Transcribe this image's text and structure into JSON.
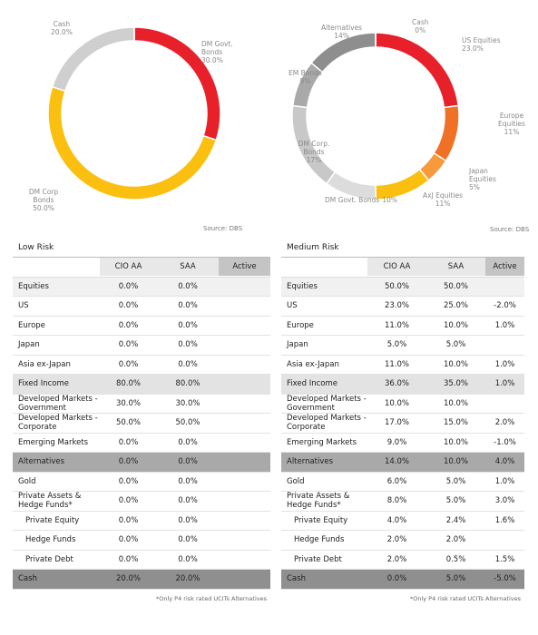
{
  "chart_data": [
    {
      "type": "pie",
      "donut": true,
      "categories": [
        "DM Govt. Bonds",
        "DM Corp Bonds",
        "Cash"
      ],
      "values": [
        30,
        50,
        20
      ],
      "value_labels": [
        "30.0%",
        "50.0%",
        "20.0%"
      ],
      "colors": [
        "#e8202a",
        "#fbbf0f",
        "#cfcfcf"
      ]
    },
    {
      "type": "pie",
      "donut": true,
      "categories": [
        "US Equities",
        "Europe Equities",
        "Japan Equities",
        "AxJ Equities",
        "DM Govt. Bonds",
        "DM Corp. Bonds",
        "EM Bonds",
        "Alternatives",
        "Cash"
      ],
      "values": [
        23,
        11,
        5,
        11,
        10,
        17,
        9,
        14,
        0
      ],
      "value_labels": [
        "23.0%",
        "11%",
        "5%",
        "11%",
        "10%",
        "17%",
        "9%",
        "14%",
        "0%"
      ],
      "colors": [
        "#e8202a",
        "#f07025",
        "#f79a3c",
        "#fbbf0f",
        "#dcdcdc",
        "#c8c8c8",
        "#a9a9a9",
        "#8e8e8e",
        "#eeeeee"
      ]
    }
  ],
  "sources": [
    "Source: DBS",
    "Source: DBS"
  ],
  "tables": [
    {
      "title": "Low Risk",
      "columns": [
        "CIO AA",
        "SAA",
        "Active"
      ],
      "groups": [
        {
          "header": [
            "Equities",
            "0.0%",
            "0.0%"
          ],
          "rows": [
            [
              "US",
              "0.0%",
              "0.0%"
            ],
            [
              "Europe",
              "0.0%",
              "0.0%"
            ],
            [
              "Japan",
              "0.0%",
              "0.0%"
            ],
            [
              "Asia ex-Japan",
              "0.0%",
              "0.0%"
            ]
          ]
        },
        {
          "header": [
            "Fixed Income",
            "80.0%",
            "80.0%"
          ],
          "rows": [
            [
              "Developed Markets - Government",
              "30.0%",
              "30.0%"
            ],
            [
              "Developed Markets - Corporate",
              "50.0%",
              "50.0%"
            ],
            [
              "Emerging Markets",
              "0.0%",
              "0.0%"
            ]
          ]
        },
        {
          "header": [
            "Alternatives",
            "0.0%",
            "0.0%"
          ],
          "rows": [
            [
              "Gold",
              "0.0%",
              "0.0%"
            ],
            [
              "Private Assets & Hedge Funds*",
              "0.0%",
              "0.0%"
            ]
          ],
          "subrows": [
            [
              "Private Equity",
              "0.0%",
              "0.0%"
            ],
            [
              "Hedge Funds",
              "0.0%",
              "0.0%"
            ],
            [
              "Private Debt",
              "0.0%",
              "0.0%"
            ]
          ]
        },
        {
          "header": [
            "Cash",
            "20.0%",
            "20.0%"
          ]
        }
      ],
      "footnote": "*Only P4 risk rated UCITs Alternatives"
    },
    {
      "title": "Medium Risk",
      "columns": [
        "CIO AA",
        "SAA",
        "Active"
      ],
      "groups": [
        {
          "header": [
            "Equities",
            "50.0%",
            "50.0%"
          ],
          "rows": [
            [
              "US",
              "23.0%",
              "25.0%",
              "-2.0%"
            ],
            [
              "Europe",
              "11.0%",
              "10.0%",
              "1.0%"
            ],
            [
              "Japan",
              "5.0%",
              "5.0%"
            ],
            [
              "Asia ex-Japan",
              "11.0%",
              "10.0%",
              "1.0%"
            ]
          ]
        },
        {
          "header": [
            "Fixed Income",
            "36.0%",
            "35.0%",
            "1.0%"
          ],
          "rows": [
            [
              "Developed Markets - Government",
              "10.0%",
              "10.0%"
            ],
            [
              "Developed Markets - Corporate",
              "17.0%",
              "15.0%",
              "2.0%"
            ],
            [
              "Emerging Markets",
              "9.0%",
              "10.0%",
              "-1.0%"
            ]
          ]
        },
        {
          "header": [
            "Alternatives",
            "14.0%",
            "10.0%",
            "4.0%"
          ],
          "rows": [
            [
              "Gold",
              "6.0%",
              "5.0%",
              "1.0%"
            ],
            [
              "Private Assets & Hedge Funds*",
              "8.0%",
              "5.0%",
              "3.0%"
            ]
          ],
          "subrows": [
            [
              "Private Equity",
              "4.0%",
              "2.4%",
              "1.6%"
            ],
            [
              "Hedge Funds",
              "2.0%",
              "2.0%"
            ],
            [
              "Private Debt",
              "2.0%",
              "0.5%",
              "1.5%"
            ]
          ]
        },
        {
          "header": [
            "Cash",
            "0.0%",
            "5.0%",
            "-5.0%"
          ]
        }
      ],
      "footnote": "*Only P4 risk rated UCITs Alternatives"
    }
  ]
}
